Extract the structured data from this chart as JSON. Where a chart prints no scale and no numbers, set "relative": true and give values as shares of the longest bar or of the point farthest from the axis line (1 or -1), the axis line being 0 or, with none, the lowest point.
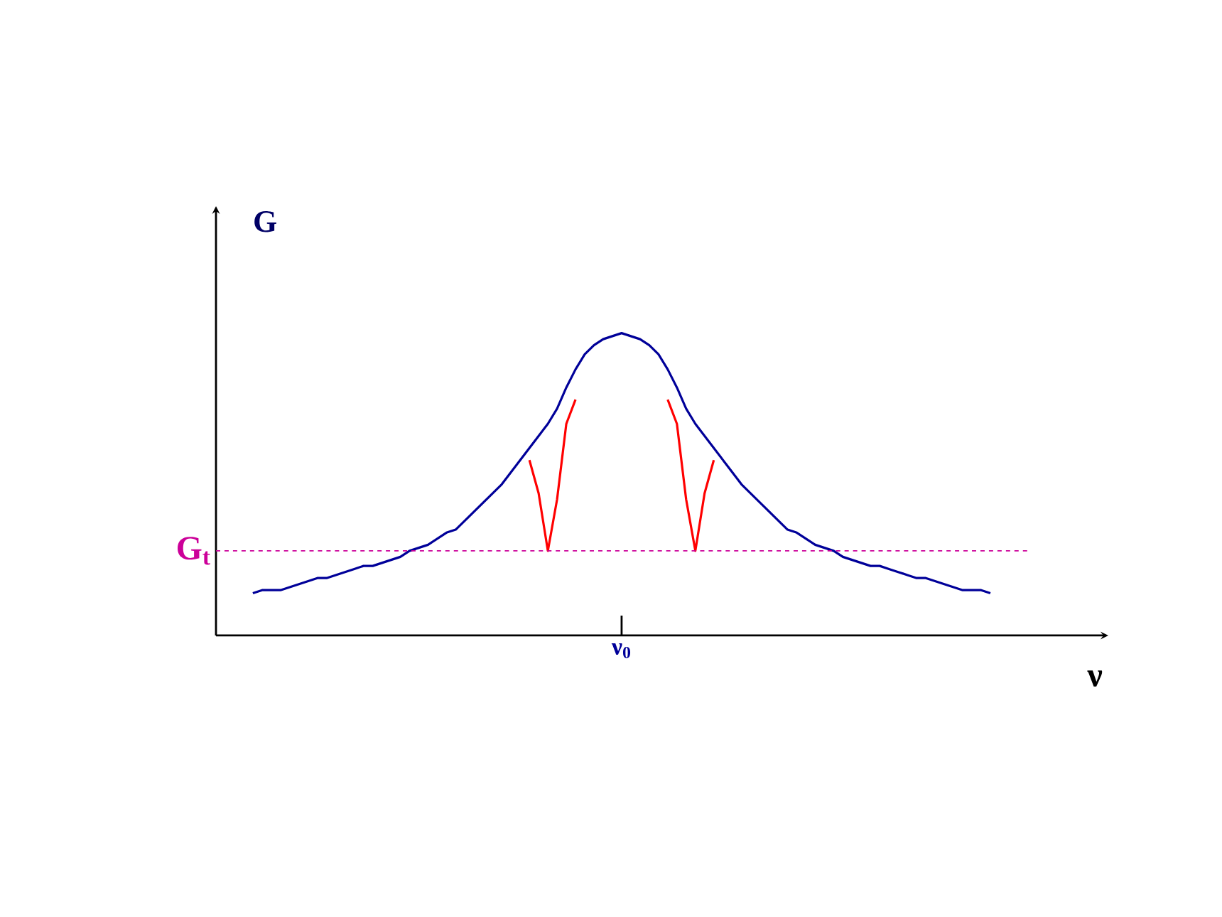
{
  "chart_data": {
    "type": "line",
    "relative": true,
    "xlabel": "ν",
    "ylabel": "G",
    "annotations": [
      "ν$_{0}$"
    ],
    "categories": [
      null,
      null,
      null,
      null,
      null,
      null,
      null,
      null,
      null,
      null,
      null,
      null,
      null,
      null,
      null,
      null,
      null,
      null,
      null,
      null,
      null,
      null,
      null,
      null,
      null,
      null,
      null,
      null,
      null,
      null,
      null,
      null,
      null,
      null,
      null,
      null,
      null,
      null,
      null,
      null,
      null,
      null,
      null,
      null,
      null,
      null,
      null,
      null,
      null,
      null,
      null,
      null,
      null,
      null,
      null,
      null,
      null,
      null,
      null,
      null,
      null,
      null,
      null,
      null,
      null,
      null,
      null,
      null,
      null,
      null,
      null,
      null,
      null,
      null,
      null,
      null,
      null,
      null,
      null,
      null,
      null
    ],
    "series": [
      {
        "color": "#000099",
        "values": [
          0.14,
          0.15,
          0.15,
          0.15,
          0.16,
          0.17,
          0.18,
          0.19,
          0.19,
          0.2,
          0.21,
          0.22,
          0.23,
          0.23,
          0.24,
          0.25,
          0.26,
          0.28,
          0.29,
          0.3,
          0.32,
          0.34,
          0.35,
          0.38,
          0.41,
          0.44,
          0.47,
          0.5,
          0.54,
          0.58,
          0.62,
          0.66,
          0.7,
          0.75,
          0.82,
          0.88,
          0.93,
          0.96,
          0.98,
          0.99,
          1,
          0.99,
          0.98,
          0.96,
          0.93,
          0.88,
          0.82,
          0.75,
          0.7,
          0.66,
          0.62,
          0.58,
          0.54,
          0.5,
          0.47,
          0.44,
          0.41,
          0.38,
          0.35,
          0.34,
          0.32,
          0.3,
          0.29,
          0.28,
          0.26,
          0.25,
          0.24,
          0.23,
          0.23,
          0.22,
          0.21,
          0.2,
          0.19,
          0.19,
          0.18,
          0.17,
          0.16,
          0.15,
          0.15,
          0.15,
          0.14
        ]
      },
      {
        "color": "#ff0000",
        "values": [
          null,
          null,
          null,
          null,
          null,
          null,
          null,
          null,
          null,
          null,
          null,
          null,
          null,
          null,
          null,
          null,
          null,
          null,
          null,
          null,
          null,
          null,
          null,
          null,
          null,
          null,
          null,
          null,
          null,
          null,
          0.58,
          0.47,
          0.28,
          0.45,
          0.7,
          0.78,
          null,
          null,
          null,
          null,
          null,
          null,
          null,
          null,
          null,
          0.78,
          0.7,
          0.45,
          0.28,
          0.47,
          0.58,
          null,
          null,
          null,
          null,
          null,
          null,
          null,
          null,
          null,
          null,
          null,
          null,
          null,
          null,
          null,
          null,
          null,
          null,
          null,
          null,
          null,
          null,
          null,
          null,
          null,
          null,
          null,
          null,
          null,
          null
        ]
      }
    ],
    "ref_lines": [
      {
        "axis": "y",
        "value": 0.28,
        "label": "G$_{t}$",
        "color": "#cc0099",
        "line_style": "dashed"
      }
    ]
  }
}
